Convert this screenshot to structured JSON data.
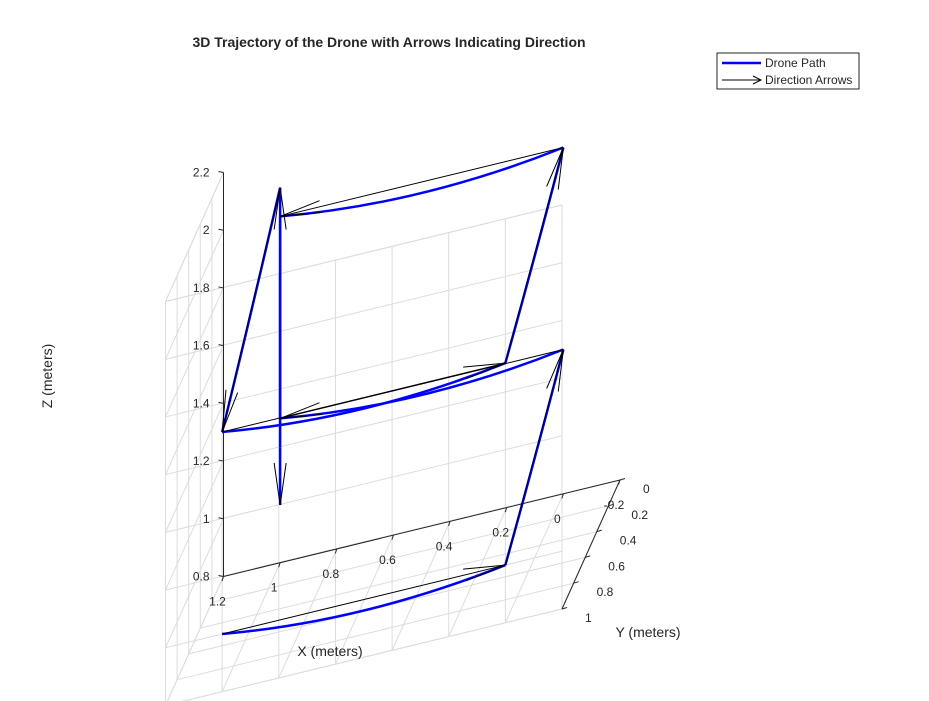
{
  "chart_data": {
    "type": "line3d",
    "title": "3D Trajectory of the Drone with Arrows Indicating Direction",
    "xlabel": "X (meters)",
    "ylabel": "Y (meters)",
    "zlabel": "Z (meters)",
    "xlim": [
      -0.2,
      1.2
    ],
    "ylim": [
      0,
      1
    ],
    "zlim": [
      0.8,
      2.2
    ],
    "xticks": [
      "1.2",
      "1",
      "0.8",
      "0.6",
      "0.4",
      "0.2",
      "0",
      "-0.2"
    ],
    "yticks": [
      "0",
      "0.2",
      "0.4",
      "0.6",
      "0.8",
      "1"
    ],
    "zticks": [
      "0.8",
      "1",
      "1.2",
      "1.4",
      "1.6",
      "1.8",
      "2",
      "2.2"
    ],
    "grid": true,
    "legend_position": "top-right",
    "series": [
      {
        "name": "Drone Path",
        "color": "#0000ff",
        "points": [
          [
            1,
            1,
            1
          ],
          [
            0,
            1,
            1
          ],
          [
            0,
            0,
            1.3
          ],
          [
            1,
            0,
            1.3
          ],
          [
            1,
            0,
            1.4
          ],
          [
            1,
            0,
            1.5
          ],
          [
            1,
            0,
            1.6
          ],
          [
            1,
            0,
            1.7
          ],
          [
            1,
            0,
            1.8
          ],
          [
            1,
            0,
            1.9
          ],
          [
            1,
            0,
            2
          ],
          [
            1,
            0,
            2.1
          ],
          [
            1,
            1,
            1.7
          ],
          [
            0,
            1,
            1.7
          ],
          [
            0,
            0,
            2
          ],
          [
            1,
            0,
            2
          ],
          [
            1,
            0,
            1.9
          ],
          [
            1,
            0,
            1.8
          ],
          [
            1,
            0,
            1.7
          ],
          [
            1,
            0,
            1.6
          ],
          [
            1,
            0,
            1.5
          ],
          [
            1,
            0,
            1.4
          ],
          [
            1,
            0,
            1.3
          ],
          [
            1,
            0,
            1.2
          ],
          [
            1,
            0,
            1.1
          ],
          [
            1,
            0,
            1
          ]
        ]
      }
    ],
    "arrows": {
      "name": "Direction Arrows",
      "color": "#000000"
    }
  }
}
